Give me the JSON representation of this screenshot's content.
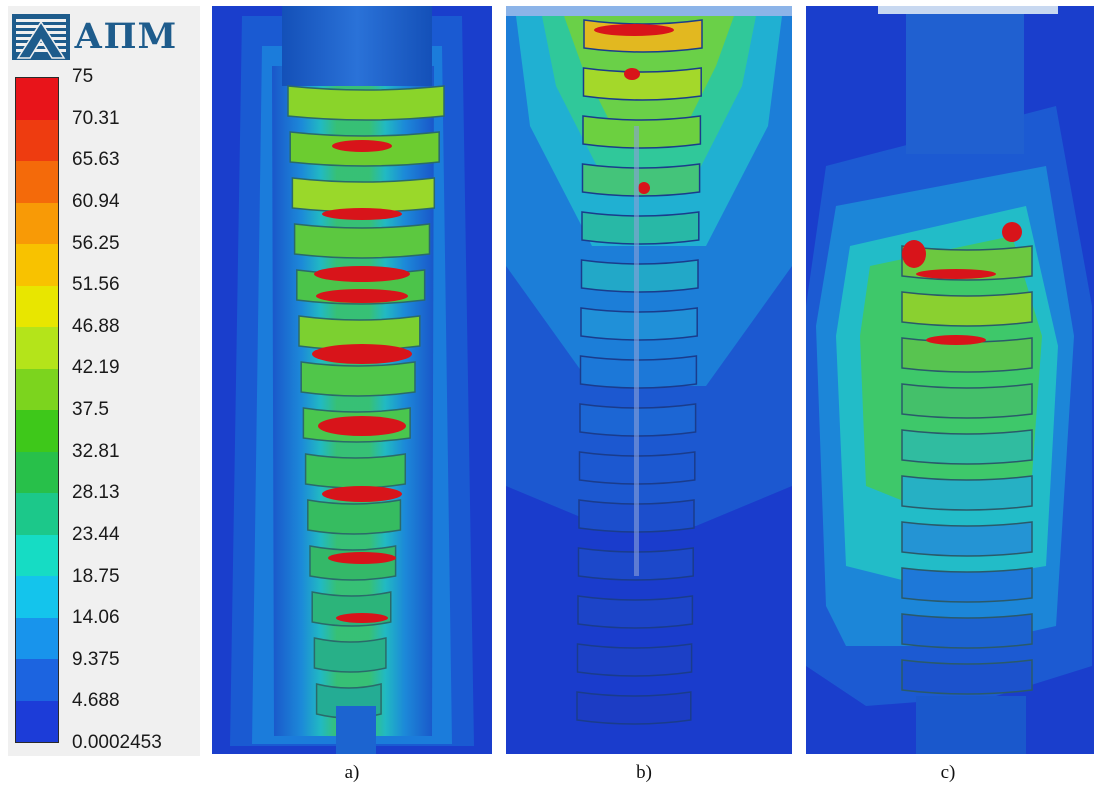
{
  "legend": {
    "logo_text": "АПМ",
    "ticks": [
      "75",
      "70.31",
      "65.63",
      "60.94",
      "56.25",
      "51.56",
      "46.88",
      "42.19",
      "37.5",
      "32.81",
      "28.13",
      "23.44",
      "18.75",
      "14.06",
      "9.375",
      "4.688",
      "0.0002453"
    ],
    "colors": [
      "#e8141a",
      "#ee3c10",
      "#f46a0a",
      "#f89a06",
      "#f8c200",
      "#e8e600",
      "#b4e41a",
      "#7cd41e",
      "#3ec81a",
      "#28c04a",
      "#1cc88a",
      "#16dcc4",
      "#14c4ec",
      "#1894ec",
      "#1c64e0",
      "#1c3cd8"
    ]
  },
  "panels": [
    {
      "label": "a)"
    },
    {
      "label": "b)"
    },
    {
      "label": "c)"
    }
  ]
}
